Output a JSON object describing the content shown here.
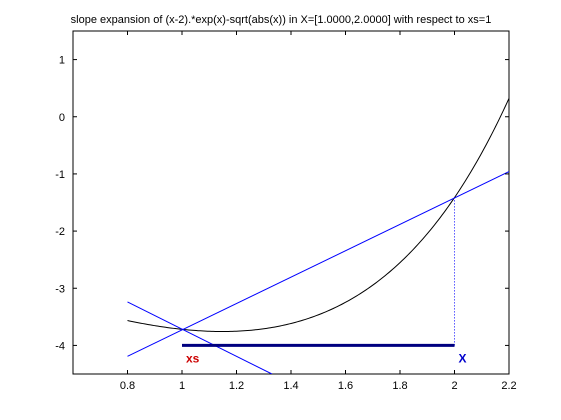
{
  "chart_data": {
    "type": "line",
    "title": "slope expansion of (x-2).*exp(x)-sqrt(abs(x)) in X=[1.0000,2.0000] with respect to xs=1",
    "xlabel": "",
    "ylabel": "",
    "xlim": [
      0.6,
      2.2
    ],
    "ylim": [
      -4.5,
      1.5
    ],
    "xticks": [
      0.8,
      1,
      1.2,
      1.4,
      1.6,
      1.8,
      2,
      2.2
    ],
    "yticks": [
      1,
      0,
      -1,
      -2,
      -3,
      -4
    ],
    "xtick_labels": [
      "0.8",
      "1",
      "1.2",
      "1.4",
      "1.6",
      "1.8",
      "2",
      "2.2"
    ],
    "ytick_labels": [
      "1",
      "0",
      "-1",
      "-2",
      "-3",
      "-4"
    ],
    "grid": false,
    "function_curve": {
      "x_start": 0.8,
      "x_end": 2.2,
      "color": "#000000"
    },
    "slope_lines": [
      {
        "x": [
          0.8,
          2.2
        ],
        "y": [
          -4.19,
          -0.96
        ],
        "color": "#0000ff"
      },
      {
        "x": [
          0.8,
          1.33
        ],
        "y": [
          -3.24,
          -4.5
        ],
        "color": "#0000ff"
      }
    ],
    "interval_segment": {
      "x": [
        1.0,
        2.0
      ],
      "y": -4.0,
      "color": "#000080"
    },
    "dotted_guide": {
      "x": 2.0,
      "y": [
        -4.0,
        -1.414
      ],
      "color": "#0000ff"
    },
    "annotations": [
      {
        "text": "xs",
        "x": 1.0,
        "y": -4.0,
        "color": "#cc0000"
      },
      {
        "text": "X",
        "x": 2.0,
        "y": -4.0,
        "color": "#0000cc"
      }
    ]
  }
}
